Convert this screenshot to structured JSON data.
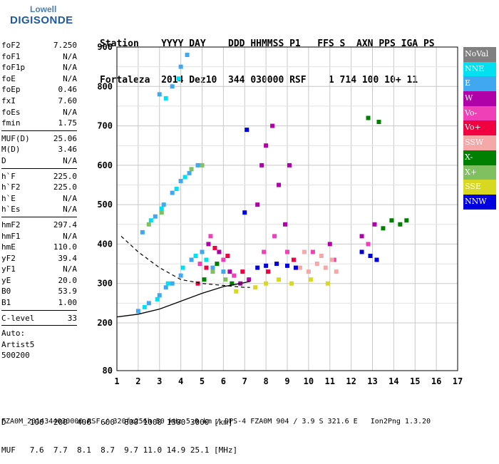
{
  "logo": {
    "line1": "Lowell",
    "line2": "DIGISONDE"
  },
  "header": {
    "row1": "Station    YYYY DAY    DDD HHMMSS P1   FFS S  AXN PPS IGA PS",
    "row2": "Fortaleza  2014 Dez10  344 030000 RSF    1 714 100 10+ 11"
  },
  "params": [
    {
      "group": [
        {
          "name": "foF2",
          "value": "7.250"
        },
        {
          "name": "foF1",
          "value": "N/A"
        },
        {
          "name": "foF1p",
          "value": "N/A"
        },
        {
          "name": "foE",
          "value": "N/A"
        },
        {
          "name": "foEp",
          "value": "0.46"
        },
        {
          "name": "fxI",
          "value": "7.60"
        },
        {
          "name": "foEs",
          "value": "N/A"
        },
        {
          "name": "fmin",
          "value": "1.75"
        }
      ]
    },
    {
      "group": [
        {
          "name": "MUF(D)",
          "value": "25.06"
        },
        {
          "name": "M(D)",
          "value": "3.46"
        },
        {
          "name": "D",
          "value": "N/A"
        }
      ]
    },
    {
      "group": [
        {
          "name": "h`F",
          "value": "225.0"
        },
        {
          "name": "h`F2",
          "value": "225.0"
        },
        {
          "name": "h`E",
          "value": "N/A"
        },
        {
          "name": "h`Es",
          "value": "N/A"
        }
      ]
    },
    {
      "group": [
        {
          "name": "hmF2",
          "value": "297.4"
        },
        {
          "name": "hmF1",
          "value": "N/A"
        },
        {
          "name": "hmE",
          "value": "110.0"
        },
        {
          "name": "yF2",
          "value": "39.4"
        },
        {
          "name": "yF1",
          "value": "N/A"
        },
        {
          "name": "yE",
          "value": "20.0"
        },
        {
          "name": "B0",
          "value": "53.9"
        },
        {
          "name": "B1",
          "value": "1.00"
        }
      ]
    },
    {
      "group": [
        {
          "name": "C-level",
          "value": "33"
        }
      ]
    },
    {
      "group": [
        {
          "name": "Auto:",
          "value": ""
        },
        {
          "name": "Artist5",
          "value": ""
        },
        {
          "name": "500200",
          "value": ""
        }
      ]
    }
  ],
  "legend": [
    {
      "label": "NoVal",
      "color": "#808080"
    },
    {
      "label": "NNE",
      "color": "#00e0f0"
    },
    {
      "label": "E",
      "color": "#40a8f0"
    },
    {
      "label": "W",
      "color": "#b000a8"
    },
    {
      "label": "Vo-",
      "color": "#f040b8"
    },
    {
      "label": "Vo+",
      "color": "#f00040"
    },
    {
      "label": "SSW",
      "color": "#f4a8a8"
    },
    {
      "label": "X-",
      "color": "#008000"
    },
    {
      "label": "X+",
      "color": "#80c060"
    },
    {
      "label": "SSE",
      "color": "#d8d820"
    },
    {
      "label": "NNW",
      "color": "#0000e0"
    }
  ],
  "chart_data": {
    "type": "scatter",
    "title": "",
    "xlabel": "",
    "ylabel": "",
    "xlim": [
      1,
      17
    ],
    "ylim": [
      80,
      900
    ],
    "x_ticks": [
      1,
      2,
      3,
      4,
      5,
      6,
      7,
      8,
      9,
      10,
      11,
      12,
      13,
      14,
      15,
      16,
      17
    ],
    "y_ticks": [
      80,
      200,
      300,
      400,
      500,
      600,
      700,
      800,
      900
    ],
    "grid": true,
    "legend_position": "right",
    "series": [
      {
        "color": "#40a8f0",
        "points": [
          [
            2.0,
            230
          ],
          [
            2.5,
            250
          ],
          [
            3.0,
            270
          ],
          [
            3.3,
            290
          ],
          [
            3.6,
            300
          ],
          [
            4.0,
            320
          ],
          [
            4.5,
            360
          ],
          [
            5.0,
            380
          ],
          [
            5.5,
            340
          ],
          [
            6.0,
            330
          ],
          [
            2.2,
            430
          ],
          [
            2.8,
            470
          ],
          [
            3.2,
            500
          ],
          [
            3.6,
            530
          ],
          [
            4.0,
            560
          ],
          [
            4.4,
            580
          ],
          [
            4.8,
            600
          ],
          [
            3.0,
            780
          ],
          [
            3.6,
            800
          ],
          [
            4.0,
            850
          ],
          [
            4.3,
            880
          ]
        ]
      },
      {
        "color": "#00e0f0",
        "points": [
          [
            2.3,
            240
          ],
          [
            2.9,
            260
          ],
          [
            3.4,
            300
          ],
          [
            4.1,
            340
          ],
          [
            4.7,
            370
          ],
          [
            5.2,
            360
          ],
          [
            2.6,
            460
          ],
          [
            3.1,
            490
          ],
          [
            3.8,
            540
          ],
          [
            4.2,
            570
          ],
          [
            3.3,
            770
          ],
          [
            3.9,
            820
          ]
        ]
      },
      {
        "color": "#b000a8",
        "points": [
          [
            5.3,
            400
          ],
          [
            5.8,
            380
          ],
          [
            6.3,
            330
          ],
          [
            6.8,
            300
          ],
          [
            7.2,
            310
          ],
          [
            7.6,
            500
          ],
          [
            7.8,
            600
          ],
          [
            8.0,
            650
          ],
          [
            8.3,
            700
          ],
          [
            8.6,
            550
          ],
          [
            8.9,
            450
          ],
          [
            9.1,
            600
          ],
          [
            11.0,
            400
          ],
          [
            12.5,
            420
          ],
          [
            13.1,
            450
          ]
        ]
      },
      {
        "color": "#f040b8",
        "points": [
          [
            4.9,
            350
          ],
          [
            5.4,
            420
          ],
          [
            6.0,
            360
          ],
          [
            6.5,
            320
          ],
          [
            7.9,
            380
          ],
          [
            8.4,
            420
          ],
          [
            9.0,
            380
          ],
          [
            10.2,
            380
          ],
          [
            11.2,
            360
          ],
          [
            12.8,
            400
          ]
        ]
      },
      {
        "color": "#f00040",
        "points": [
          [
            5.2,
            340
          ],
          [
            5.6,
            390
          ],
          [
            6.2,
            370
          ],
          [
            6.9,
            330
          ],
          [
            8.1,
            330
          ],
          [
            9.3,
            360
          ],
          [
            4.8,
            300
          ]
        ]
      },
      {
        "color": "#f4a8a8",
        "points": [
          [
            9.6,
            340
          ],
          [
            10.0,
            330
          ],
          [
            10.4,
            350
          ],
          [
            10.8,
            340
          ],
          [
            11.1,
            360
          ],
          [
            9.8,
            380
          ],
          [
            10.6,
            370
          ],
          [
            11.3,
            330
          ]
        ]
      },
      {
        "color": "#008000",
        "points": [
          [
            5.1,
            310
          ],
          [
            5.7,
            350
          ],
          [
            6.4,
            300
          ],
          [
            13.5,
            440
          ],
          [
            13.9,
            460
          ],
          [
            14.3,
            450
          ],
          [
            14.6,
            460
          ],
          [
            12.8,
            720
          ],
          [
            13.3,
            710
          ]
        ]
      },
      {
        "color": "#80c060",
        "points": [
          [
            5.5,
            330
          ],
          [
            6.1,
            310
          ],
          [
            2.5,
            450
          ],
          [
            3.1,
            480
          ],
          [
            4.5,
            590
          ],
          [
            5.0,
            600
          ]
        ]
      },
      {
        "color": "#d8d820",
        "points": [
          [
            7.5,
            290
          ],
          [
            8.0,
            300
          ],
          [
            8.6,
            310
          ],
          [
            9.2,
            300
          ],
          [
            10.1,
            310
          ],
          [
            10.9,
            300
          ],
          [
            6.6,
            280
          ]
        ]
      },
      {
        "color": "#0000e0",
        "points": [
          [
            7.6,
            340
          ],
          [
            8.0,
            345
          ],
          [
            8.5,
            350
          ],
          [
            9.0,
            345
          ],
          [
            9.4,
            340
          ],
          [
            12.5,
            380
          ],
          [
            12.9,
            370
          ],
          [
            13.2,
            360
          ],
          [
            7.0,
            480
          ],
          [
            7.1,
            690
          ]
        ]
      }
    ],
    "profile_curve": {
      "dashed": [
        [
          1.2,
          420
        ],
        [
          2.0,
          380
        ],
        [
          3.0,
          340
        ],
        [
          4.0,
          310
        ],
        [
          5.0,
          300
        ],
        [
          6.0,
          295
        ],
        [
          7.0,
          290
        ],
        [
          7.25,
          290
        ]
      ],
      "solid": [
        [
          1.0,
          215
        ],
        [
          2.0,
          222
        ],
        [
          3.0,
          235
        ],
        [
          4.0,
          255
        ],
        [
          5.0,
          275
        ],
        [
          6.0,
          292
        ],
        [
          6.8,
          300
        ],
        [
          7.25,
          305
        ]
      ]
    }
  },
  "bottom": {
    "d_row": "D     100  200  400  600  800 1000 1500 3000 [km]",
    "muf_row": "MUF   7.6  7.7  8.1  8.7  9.7 11.0 14.9 25.1 [MHz]"
  },
  "footer": "FZA0M_2014344030000.RSF / 320fx256h 50 kHz 5.0 km / DPS-4 FZA0M 904 / 3.9 S 321.6 E   Ion2Png 1.3.20"
}
